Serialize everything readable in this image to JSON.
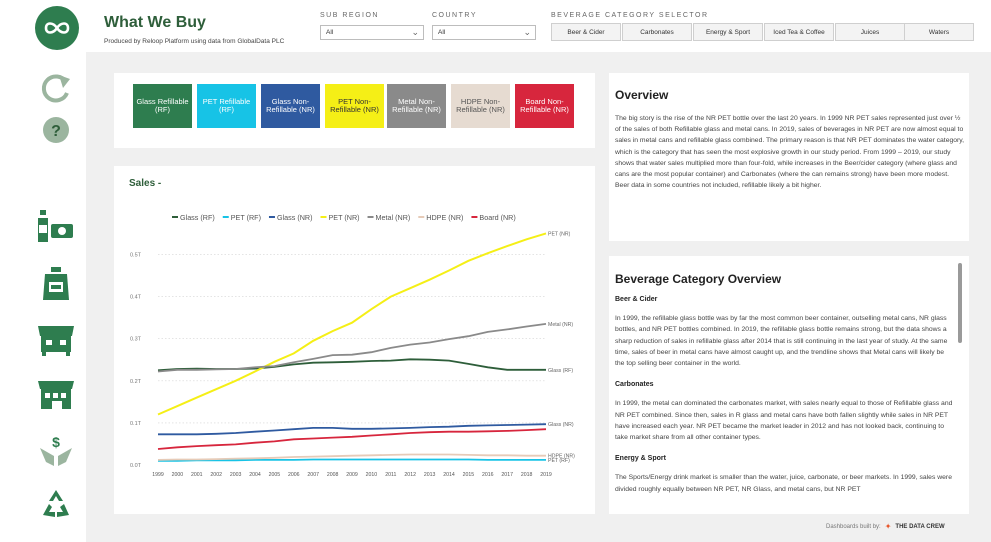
{
  "header": {
    "title": "What We Buy",
    "subtitle": "Produced by Reloop Platform using data from GlobalData PLC"
  },
  "filters": {
    "sub_region": {
      "label": "SUB REGION",
      "value": "All"
    },
    "country": {
      "label": "COUNTRY",
      "value": "All"
    },
    "beverage_category": {
      "label": "BEVERAGE CATEGORY SELECTOR",
      "options": [
        "Beer & Cider",
        "Carbonates",
        "Energy & Sport",
        "Iced Tea & Coffee",
        "Juices",
        "Waters"
      ]
    }
  },
  "sidebar": {
    "icons": [
      "reloop-logo-icon",
      "refresh-icon",
      "help-icon",
      "bottle-money-icon",
      "jerrycan-icon",
      "market-stall-icon",
      "store-money-icon",
      "hands-dollar-icon",
      "recycle-icon"
    ],
    "help_glyph": "?"
  },
  "container_types": [
    {
      "label": "Glass Refillable (RF)",
      "color": "#2e7d4f",
      "text_color": "#ffffff"
    },
    {
      "label": "PET Refillable (RF)",
      "color": "#17c3e6",
      "text_color": "#ffffff"
    },
    {
      "label": "Glass Non-Refillable (NR)",
      "color": "#2f5aa0",
      "text_color": "#ffffff"
    },
    {
      "label": "PET Non-Refillable (NR)",
      "color": "#f5ef16",
      "text_color": "#333333"
    },
    {
      "label": "Metal Non-Refillable (NR)",
      "color": "#8a8a8a",
      "text_color": "#ffffff"
    },
    {
      "label": "HDPE Non-Refillable (NR)",
      "color": "#e6dbd1",
      "text_color": "#555555"
    },
    {
      "label": "Board Non-Refillable (NR)",
      "color": "#d7263d",
      "text_color": "#ffffff"
    }
  ],
  "chart_data": {
    "type": "line",
    "title": "Sales -",
    "xlabel": "",
    "ylabel": "",
    "x": [
      "1999",
      "2000",
      "2001",
      "2002",
      "2003",
      "2004",
      "2005",
      "2006",
      "2007",
      "2008",
      "2009",
      "2010",
      "2011",
      "2012",
      "2013",
      "2014",
      "2015",
      "2016",
      "2017",
      "2018",
      "2019"
    ],
    "y_ticks": [
      "0.0T",
      "0.1T",
      "0.2T",
      "0.3T",
      "0.4T",
      "0.5T"
    ],
    "ylim": [
      0,
      0.57
    ],
    "series": [
      {
        "name": "Glass (RF)",
        "color": "#2e5e3a",
        "end_label": "Glass (RF)",
        "values": [
          0.225,
          0.228,
          0.229,
          0.228,
          0.228,
          0.229,
          0.233,
          0.239,
          0.243,
          0.244,
          0.245,
          0.247,
          0.248,
          0.251,
          0.25,
          0.248,
          0.24,
          0.232,
          0.226,
          0.226,
          0.226
        ]
      },
      {
        "name": "PET (RF)",
        "color": "#17c3e6",
        "end_label": "PET (RF)",
        "values": [
          0.01,
          0.01,
          0.011,
          0.011,
          0.011,
          0.012,
          0.012,
          0.012,
          0.013,
          0.013,
          0.013,
          0.013,
          0.013,
          0.013,
          0.013,
          0.013,
          0.013,
          0.012,
          0.012,
          0.012,
          0.012
        ]
      },
      {
        "name": "Glass (NR)",
        "color": "#2f5aa0",
        "end_label": "Glass (NR)",
        "values": [
          0.073,
          0.073,
          0.073,
          0.074,
          0.076,
          0.079,
          0.082,
          0.085,
          0.088,
          0.088,
          0.086,
          0.086,
          0.087,
          0.088,
          0.09,
          0.091,
          0.093,
          0.094,
          0.095,
          0.096,
          0.097
        ]
      },
      {
        "name": "PET (NR)",
        "color": "#f5ef16",
        "end_label": "PET (NR)",
        "values": [
          0.12,
          0.14,
          0.16,
          0.18,
          0.2,
          0.222,
          0.245,
          0.265,
          0.295,
          0.318,
          0.338,
          0.37,
          0.4,
          0.42,
          0.44,
          0.462,
          0.485,
          0.503,
          0.52,
          0.536,
          0.55
        ]
      },
      {
        "name": "Metal (NR)",
        "color": "#8a8a8a",
        "end_label": "Metal (NR)",
        "values": [
          0.222,
          0.226,
          0.226,
          0.227,
          0.228,
          0.232,
          0.235,
          0.244,
          0.252,
          0.261,
          0.262,
          0.268,
          0.278,
          0.286,
          0.291,
          0.299,
          0.306,
          0.316,
          0.322,
          0.329,
          0.335
        ]
      },
      {
        "name": "HDPE (NR)",
        "color": "#e6cbb8",
        "end_label": "HDPE (NR)",
        "values": [
          0.012,
          0.013,
          0.013,
          0.014,
          0.015,
          0.016,
          0.017,
          0.019,
          0.02,
          0.021,
          0.022,
          0.023,
          0.024,
          0.025,
          0.025,
          0.025,
          0.024,
          0.023,
          0.023,
          0.022,
          0.022
        ]
      },
      {
        "name": "Board (NR)",
        "color": "#d7263d",
        "end_label": "",
        "values": [
          0.038,
          0.042,
          0.045,
          0.047,
          0.049,
          0.053,
          0.056,
          0.061,
          0.063,
          0.065,
          0.067,
          0.07,
          0.073,
          0.076,
          0.078,
          0.079,
          0.079,
          0.08,
          0.081,
          0.083,
          0.085
        ]
      }
    ]
  },
  "overview": {
    "title": "Overview",
    "text": "The big story is the rise of the NR PET bottle over the last 20 years. In 1999 NR PET sales represented just over ½ of the sales of both Refillable glass and metal cans. In 2019, sales of beverages in NR PET are now almost equal to sales in metal cans and refillable glass combined. The primary reason is that NR PET dominates the water category, which is the category that has seen the most explosive growth in our study period. From 1999 – 2019, our study shows that water sales multiplied more than four-fold, while increases in the Beer/cider category (where glass and cans are the most popular container) and Carbonates (where the can remains strong) have been more modest. Beer data in some countries not included, refillable likely a bit higher."
  },
  "beverage_overview": {
    "title": "Beverage Category Overview",
    "sections": [
      {
        "heading": "Beer & Cider",
        "text": "In 1999, the refillable glass bottle was by far the most common beer container, outselling metal cans, NR glass bottles, and NR PET bottles combined. In 2019, the refillable glass bottle remains strong, but the data shows a sharp reduction of sales in refillable glass after 2014 that is still continuing in the last year of study. At the same time, sales of beer in metal cans have almost caught up, and the trendline shows that Metal cans will likely be the top selling beer container in the world."
      },
      {
        "heading": "Carbonates",
        "text": "In 1999, the metal can dominated the carbonates market, with sales nearly equal to those of Refillable glass and NR PET combined. Since then, sales in R glass and metal cans have both fallen slightly while sales in NR PET have increased each year. NR PET became the market leader in 2012 and has not looked back, continuing to take market share from all other container types."
      },
      {
        "heading": "Energy & Sport",
        "text": "The Sports/Energy drink market is smaller than the water, juice, carbonate, or beer markets. In 1999, sales were divided roughly equally between NR PET, NR Glass, and metal cans, but NR PET"
      }
    ]
  },
  "footer": {
    "built_by": "Dashboards built by:",
    "brand": "THE DATA CREW"
  }
}
